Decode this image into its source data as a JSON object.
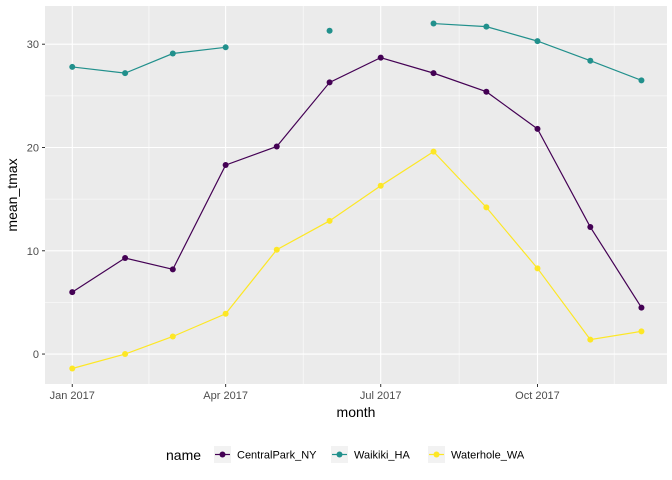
{
  "chart_data": {
    "type": "line",
    "xlabel": "month",
    "ylabel": "mean_tmax",
    "x_ticks": [
      "Jan 2017",
      "Apr 2017",
      "Jul 2017",
      "Oct 2017"
    ],
    "y_ticks": [
      0,
      10,
      20,
      30
    ],
    "ylim": [
      -2.9,
      33.7
    ],
    "xlim": [
      "2016-12-16",
      "2017-12-16"
    ],
    "grid": true,
    "legend_title": "name",
    "legend_position": "bottom",
    "x": [
      "2017-01-01",
      "2017-02-01",
      "2017-03-01",
      "2017-04-01",
      "2017-05-01",
      "2017-06-01",
      "2017-07-01",
      "2017-08-01",
      "2017-09-01",
      "2017-10-01",
      "2017-11-01",
      "2017-12-01"
    ],
    "series": [
      {
        "name": "CentralPark_NY",
        "color": "#440154",
        "values": [
          6.0,
          9.3,
          8.2,
          18.3,
          20.1,
          26.3,
          28.7,
          27.2,
          25.4,
          21.8,
          12.3,
          4.5
        ]
      },
      {
        "name": "Waikiki_HA",
        "color": "#21908C",
        "values": [
          27.8,
          27.2,
          29.1,
          29.7,
          null,
          31.3,
          null,
          32.0,
          31.7,
          30.3,
          28.4,
          26.5
        ]
      },
      {
        "name": "Waterhole_WA",
        "color": "#FDE725",
        "values": [
          -1.4,
          0.0,
          1.7,
          3.9,
          10.1,
          12.9,
          16.3,
          19.6,
          14.2,
          8.3,
          1.4,
          2.2
        ]
      }
    ]
  }
}
